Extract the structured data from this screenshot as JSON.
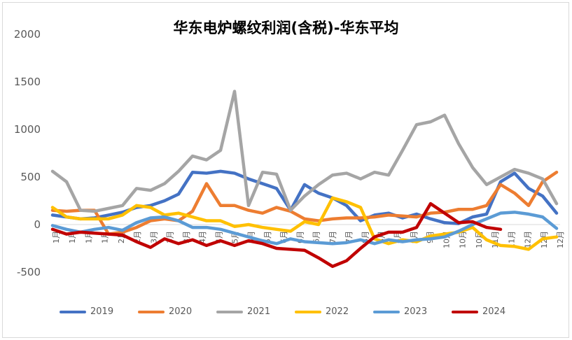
{
  "chart_data": {
    "type": "line",
    "title": "华东电炉螺纹利润(含税)-华东平均",
    "xlabel": "",
    "ylabel": "",
    "ylim": [
      -500,
      2000
    ],
    "yticks": [
      -500,
      0,
      500,
      1000,
      1500,
      2000
    ],
    "xtick_labels": [
      "1月",
      "1月",
      "1月",
      "1月",
      "2月",
      "2月",
      "3月",
      "3月",
      "3月",
      "4月",
      "4月",
      "5月",
      "5月",
      "5月",
      "6月",
      "6月",
      "6月",
      "7月",
      "7月",
      "8月",
      "8月",
      "8月",
      "9月",
      "9月",
      "10月",
      "10月",
      "10月",
      "11月",
      "11月",
      "12月",
      "12月",
      "12月"
    ],
    "grid": false,
    "legend_position": "bottom",
    "series": [
      {
        "name": "2019",
        "color": "#4472c4",
        "values": [
          100,
          80,
          60,
          70,
          100,
          130,
          180,
          200,
          250,
          320,
          550,
          540,
          560,
          540,
          480,
          430,
          380,
          150,
          420,
          330,
          280,
          200,
          40,
          100,
          120,
          70,
          110,
          60,
          20,
          10,
          80,
          110,
          450,
          540,
          380,
          300,
          120
        ]
      },
      {
        "name": "2020",
        "color": "#ed7d31",
        "values": [
          150,
          140,
          150,
          150,
          -100,
          -80,
          -30,
          40,
          60,
          40,
          140,
          430,
          200,
          200,
          150,
          120,
          180,
          140,
          60,
          40,
          60,
          70,
          70,
          80,
          100,
          90,
          80,
          120,
          130,
          160,
          160,
          200,
          420,
          330,
          200,
          450,
          550
        ]
      },
      {
        "name": "2021",
        "color": "#a5a5a5",
        "values": [
          560,
          450,
          150,
          140,
          170,
          200,
          380,
          360,
          430,
          560,
          720,
          680,
          780,
          1400,
          200,
          550,
          530,
          150,
          300,
          420,
          520,
          540,
          480,
          550,
          520,
          780,
          1050,
          1080,
          1150,
          850,
          600,
          420,
          500,
          580,
          540,
          480,
          220
        ]
      },
      {
        "name": "2022",
        "color": "#ffc000",
        "values": [
          180,
          80,
          60,
          60,
          60,
          100,
          200,
          180,
          100,
          120,
          80,
          40,
          40,
          -20,
          0,
          -30,
          -50,
          -70,
          30,
          0,
          280,
          240,
          180,
          -150,
          -200,
          -160,
          -180,
          -120,
          -100,
          -80,
          -30,
          -160,
          -220,
          -230,
          -260,
          -150,
          -130
        ]
      },
      {
        "name": "2023",
        "color": "#5b9bd5",
        "values": [
          -10,
          -50,
          -80,
          -50,
          -30,
          -60,
          20,
          70,
          80,
          40,
          -30,
          -30,
          -50,
          -90,
          -130,
          -170,
          -200,
          -150,
          -180,
          -190,
          -200,
          -190,
          -160,
          -200,
          -160,
          -180,
          -160,
          -150,
          -130,
          -70,
          0,
          60,
          120,
          130,
          110,
          80,
          -40
        ]
      },
      {
        "name": "2024",
        "color": "#c00000",
        "values": [
          -50,
          -100,
          -80,
          -90,
          -100,
          -110,
          -180,
          -240,
          -150,
          -200,
          -160,
          -220,
          -170,
          -220,
          -170,
          -200,
          -250,
          -260,
          -270,
          -350,
          -440,
          -380,
          -250,
          -130,
          -80,
          -80,
          -30,
          220,
          120,
          20,
          30,
          -30,
          -50
        ]
      }
    ]
  }
}
